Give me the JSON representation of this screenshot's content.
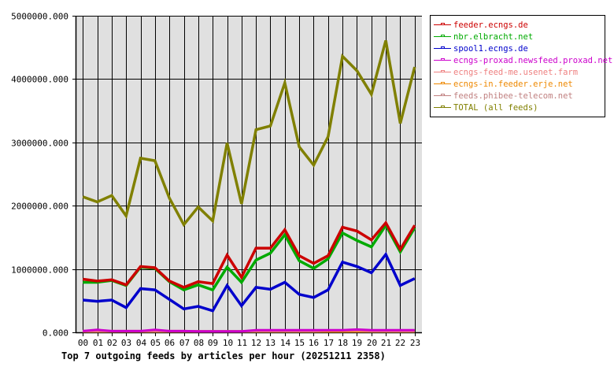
{
  "chart_data": {
    "type": "line",
    "title": "Top 7 outgoing feeds by articles per hour (20251211 2358)",
    "xlabel": "",
    "ylabel": "",
    "ylim": [
      0,
      5000000
    ],
    "yticks": [
      "0.000",
      "1000000.000",
      "2000000.000",
      "3000000.000",
      "4000000.000",
      "5000000.000"
    ],
    "grid": true,
    "legend_position": "right",
    "categories": [
      "00",
      "01",
      "02",
      "03",
      "04",
      "05",
      "06",
      "07",
      "08",
      "09",
      "10",
      "11",
      "12",
      "13",
      "14",
      "15",
      "16",
      "17",
      "18",
      "19",
      "20",
      "21",
      "22",
      "23"
    ],
    "series": [
      {
        "name": "feeder.ecngs.de",
        "color": "#cc0000",
        "values": [
          840000,
          810000,
          830000,
          750000,
          1040000,
          1020000,
          810000,
          710000,
          800000,
          770000,
          1220000,
          870000,
          1330000,
          1330000,
          1620000,
          1210000,
          1090000,
          1210000,
          1660000,
          1600000,
          1460000,
          1730000,
          1310000,
          1690000
        ]
      },
      {
        "name": "nbr.elbracht.net",
        "color": "#00aa00",
        "values": [
          790000,
          790000,
          820000,
          740000,
          1030000,
          1010000,
          800000,
          670000,
          750000,
          670000,
          1030000,
          790000,
          1140000,
          1250000,
          1540000,
          1130000,
          1010000,
          1160000,
          1570000,
          1450000,
          1350000,
          1690000,
          1270000,
          1650000
        ]
      },
      {
        "name": "spool1.ecngs.de",
        "color": "#0000cc",
        "values": [
          510000,
          490000,
          510000,
          390000,
          690000,
          670000,
          520000,
          370000,
          410000,
          340000,
          740000,
          420000,
          710000,
          680000,
          790000,
          600000,
          550000,
          670000,
          1110000,
          1040000,
          940000,
          1230000,
          740000,
          850000
        ]
      },
      {
        "name": "ecngs-proxad.newsfeed.proxad.net",
        "color": "#cc00cc",
        "values": [
          20000,
          40000,
          20000,
          20000,
          20000,
          40000,
          20000,
          20000,
          15000,
          15000,
          15000,
          15000,
          35000,
          35000,
          35000,
          35000,
          35000,
          35000,
          35000,
          45000,
          35000,
          35000,
          35000,
          35000
        ]
      },
      {
        "name": "ecngs-feed-me.usenet.farm",
        "color": "#ee8080",
        "values": [
          20000,
          20000,
          20000,
          20000,
          20000,
          20000,
          20000,
          20000,
          15000,
          15000,
          15000,
          15000,
          20000,
          20000,
          20000,
          20000,
          20000,
          30000,
          30000,
          30000,
          20000,
          20000,
          20000,
          20000
        ]
      },
      {
        "name": "ecngs-in.feeder.erje.net",
        "color": "#ee8800",
        "values": [
          15000,
          15000,
          15000,
          15000,
          15000,
          15000,
          15000,
          15000,
          15000,
          15000,
          15000,
          15000,
          15000,
          15000,
          15000,
          15000,
          15000,
          15000,
          15000,
          15000,
          15000,
          15000,
          15000,
          15000
        ]
      },
      {
        "name": "feeds.phibee-telecom.net",
        "color": "#c08080",
        "values": [
          15000,
          15000,
          15000,
          15000,
          15000,
          15000,
          15000,
          15000,
          15000,
          15000,
          15000,
          15000,
          15000,
          15000,
          15000,
          15000,
          15000,
          15000,
          15000,
          15000,
          15000,
          15000,
          15000,
          15000
        ]
      },
      {
        "name": "TOTAL (all feeds)",
        "color": "#808000",
        "values": [
          2140000,
          2060000,
          2160000,
          1840000,
          2750000,
          2710000,
          2120000,
          1700000,
          1980000,
          1760000,
          2990000,
          2030000,
          3200000,
          3260000,
          3940000,
          2930000,
          2640000,
          3090000,
          4360000,
          4130000,
          3760000,
          4610000,
          3300000,
          4190000
        ]
      }
    ]
  },
  "legend": {
    "items": [
      {
        "label": "feeder.ecngs.de",
        "color": "#cc0000"
      },
      {
        "label": "nbr.elbracht.net",
        "color": "#00aa00"
      },
      {
        "label": "spool1.ecngs.de",
        "color": "#0000cc"
      },
      {
        "label": "ecngs-proxad.newsfeed.proxad.net",
        "color": "#cc00cc"
      },
      {
        "label": "ecngs-feed-me.usenet.farm",
        "color": "#ee8080"
      },
      {
        "label": "ecngs-in.feeder.erje.net",
        "color": "#ee8800"
      },
      {
        "label": "feeds.phibee-telecom.net",
        "color": "#c08080"
      },
      {
        "label": "TOTAL (all feeds)",
        "color": "#808000"
      }
    ]
  },
  "colors": {
    "plot_background": "#e0e0e0",
    "grid": "#000000",
    "page_background": "#ffffff"
  }
}
